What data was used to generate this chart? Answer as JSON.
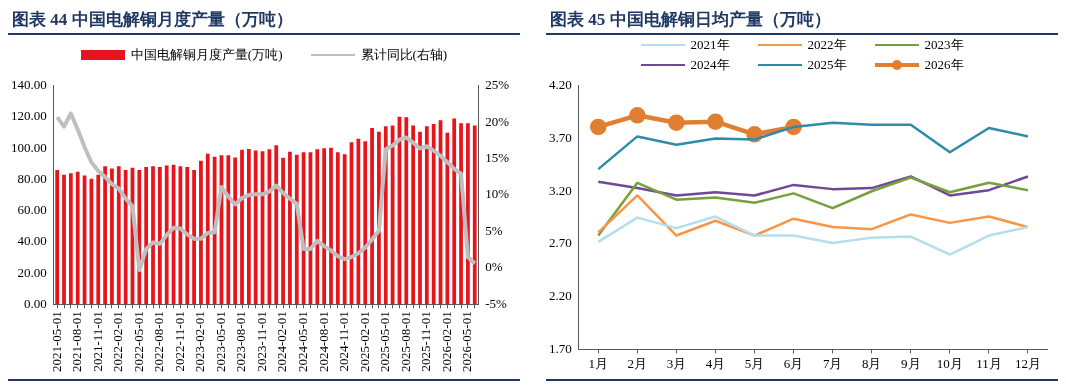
{
  "chart_data": [
    {
      "type": "bar",
      "title": "图表 44    中国电解铜月度产量（万吨）",
      "legend": "top",
      "categories": [
        "2021-05-01",
        null,
        null,
        "2021-08-01",
        null,
        null,
        "2021-11-01",
        null,
        null,
        "2022-02-01",
        null,
        null,
        "2022-05-01",
        null,
        null,
        "2022-08-01",
        null,
        null,
        "2022-11-01",
        null,
        null,
        "2023-02-01",
        null,
        null,
        "2023-05-01",
        null,
        null,
        "2023-08-01",
        null,
        null,
        "2023-11-01",
        null,
        null,
        "2024-02-01",
        null,
        null,
        "2024-05-01",
        null,
        null,
        "2024-08-01",
        null,
        null,
        "2024-11-01",
        null,
        null,
        "2025-02-01",
        null,
        null,
        "2025-05-01",
        null,
        null,
        "2025-08-01",
        null,
        null,
        "2025-11-01",
        null,
        null,
        "2026-02-01",
        null,
        null,
        "2026-05-01",
        null
      ],
      "series": [
        {
          "name": "中国电解铜月度产量(万吨)",
          "type": "bar",
          "color": "#e8141c",
          "values": [
            86,
            83,
            84,
            85,
            82.5,
            80.5,
            83,
            88.5,
            87,
            88.5,
            86,
            87.5,
            86,
            88,
            88.5,
            88,
            89,
            89.5,
            88.5,
            88,
            86,
            92,
            96.5,
            94.5,
            95.5,
            95.5,
            94,
            99,
            99.5,
            98.6,
            98.1,
            99.4,
            101.9,
            93.9,
            97.8,
            95.9,
            97.5,
            97.5,
            99.4,
            100,
            100.3,
            97.5,
            96.1,
            103.9,
            106.1,
            104.4,
            113,
            110.5,
            114.1,
            114.6,
            120.2,
            119.9,
            114.6,
            110.5,
            114.1,
            115.5,
            118,
            109.9,
            119.1,
            116,
            116,
            114.6
          ]
        },
        {
          "name": "累计同比(右轴)",
          "type": "line",
          "axis": "y2",
          "color": "#bfbfbf",
          "values": [
            20.7,
            19.4,
            21.2,
            19.0,
            16.6,
            14.5,
            13.3,
            12.5,
            11.5,
            10.9,
            9.5,
            8.5,
            -0.3,
            2.6,
            3.5,
            3.3,
            4.5,
            5.5,
            5.4,
            4.6,
            4.0,
            4.0,
            4.8,
            4.9,
            11.1,
            9.8,
            8.7,
            9.6,
            10.0,
            10.1,
            10.1,
            10.5,
            11.3,
            10.3,
            9.5,
            8.8,
            2.6,
            2.6,
            3.7,
            3.0,
            2.4,
            1.6,
            1.2,
            1.5,
            2.0,
            2.8,
            3.9,
            5.1,
            16.3,
            16.8,
            17.6,
            17.9,
            17.2,
            16.4,
            16.7,
            16.1,
            15.4,
            14.5,
            13.6,
            12.9,
            1.5,
            0.6
          ]
        }
      ],
      "ylim": [
        0,
        140
      ],
      "yticks": [
        {
          "value": 0,
          "label": "0.00"
        },
        {
          "value": 20,
          "label": "20.00"
        },
        {
          "value": 40,
          "label": "40.00"
        },
        {
          "value": 60,
          "label": "60.00"
        },
        {
          "value": 80,
          "label": "80.00"
        },
        {
          "value": 100,
          "label": "100.00"
        },
        {
          "value": 120,
          "label": "120.00"
        },
        {
          "value": 140,
          "label": "140.00"
        }
      ],
      "y2lim": [
        -5,
        25
      ],
      "y2ticks": [
        {
          "value": -5,
          "label": "-5%"
        },
        {
          "value": 0,
          "label": "0%"
        },
        {
          "value": 5,
          "label": "5%"
        },
        {
          "value": 10,
          "label": "10%"
        },
        {
          "value": 15,
          "label": "15%"
        },
        {
          "value": 20,
          "label": "20%"
        },
        {
          "value": 25,
          "label": "25%"
        }
      ]
    },
    {
      "type": "line",
      "title": "图表 45    中国电解铜日均产量（万吨）",
      "legend": "top",
      "categories": [
        "1月",
        "2月",
        "3月",
        "4月",
        "5月",
        "6月",
        "7月",
        "8月",
        "9月",
        "10月",
        "11月",
        "12月"
      ],
      "series": [
        {
          "name": "2021年",
          "color": "#b4dfea",
          "values": [
            2.72,
            2.95,
            2.85,
            2.96,
            2.78,
            2.78,
            2.71,
            2.76,
            2.77,
            2.6,
            2.78,
            2.86
          ]
        },
        {
          "name": "2022年",
          "color": "#f79646",
          "values": [
            2.81,
            3.16,
            2.78,
            2.92,
            2.78,
            2.94,
            2.86,
            2.84,
            2.98,
            2.9,
            2.96,
            2.86
          ]
        },
        {
          "name": "2023年",
          "color": "#77a03a",
          "values": [
            2.78,
            3.28,
            3.12,
            3.14,
            3.09,
            3.18,
            3.04,
            3.2,
            3.33,
            3.19,
            3.28,
            3.21
          ]
        },
        {
          "name": "2024年",
          "color": "#70489a",
          "values": [
            3.29,
            3.23,
            3.16,
            3.19,
            3.16,
            3.26,
            3.22,
            3.23,
            3.34,
            3.16,
            3.21,
            3.34
          ]
        },
        {
          "name": "2025年",
          "color": "#2e8ca8",
          "values": [
            3.41,
            3.72,
            3.64,
            3.7,
            3.69,
            3.81,
            3.85,
            3.83,
            3.83,
            3.57,
            3.8,
            3.72
          ]
        },
        {
          "name": "2026年",
          "color": "#e07f32",
          "marker": "circle",
          "values": [
            3.81,
            3.92,
            3.85,
            3.86,
            3.74,
            3.81,
            null,
            null,
            null,
            null,
            null,
            null
          ]
        }
      ],
      "ylim": [
        1.7,
        4.2
      ],
      "yticks": [
        {
          "value": 1.7,
          "label": "1.70"
        },
        {
          "value": 2.2,
          "label": "2.20"
        },
        {
          "value": 2.7,
          "label": "2.70"
        },
        {
          "value": 3.2,
          "label": "3.20"
        },
        {
          "value": 3.7,
          "label": "3.70"
        },
        {
          "value": 4.2,
          "label": "4.20"
        }
      ]
    }
  ]
}
